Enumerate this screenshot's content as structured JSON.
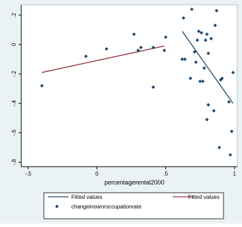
{
  "chart_data": {
    "type": "scatter",
    "title": "",
    "xlabel": "percentagerental2000",
    "ylabel": "",
    "xlim": [
      -0.55,
      1.02
    ],
    "ylim": [
      -0.83,
      0.27
    ],
    "x_ticks": [
      -0.5,
      0,
      0.5,
      1
    ],
    "x_tick_labels": [
      "-.5",
      "0",
      ".5",
      "1"
    ],
    "y_ticks": [
      -0.8,
      -0.6,
      -0.4,
      -0.2,
      0,
      0.2
    ],
    "y_tick_labels": [
      "-.8",
      "-.6",
      "-.4",
      "-.2",
      "0",
      ".2"
    ],
    "grid": false,
    "legend_position": "bottom",
    "colors": {
      "outer_background": "#eaf2f3",
      "plot_background": "#ffffff",
      "points": "#1a476f",
      "left_fit": "#90353b",
      "right_fit": "#1a476f"
    },
    "series": [
      {
        "name": "changeinownroccupationrate",
        "type": "scatter",
        "marker": "diamond",
        "color": "#1a476f",
        "points": [
          [
            -0.4,
            -0.28
          ],
          [
            -0.08,
            -0.08
          ],
          [
            0.07,
            -0.03
          ],
          [
            0.27,
            0.07
          ],
          [
            0.3,
            -0.04
          ],
          [
            0.32,
            -0.02
          ],
          [
            0.41,
            -0.02
          ],
          [
            0.41,
            -0.29
          ],
          [
            0.49,
            -0.04
          ],
          [
            0.5,
            0.05
          ],
          [
            0.62,
            -0.1
          ],
          [
            0.63,
            0.18
          ],
          [
            0.64,
            -0.1
          ],
          [
            0.68,
            -0.23
          ],
          [
            0.69,
            0.24
          ],
          [
            0.71,
            -0.05
          ],
          [
            0.72,
            -0.12
          ],
          [
            0.73,
            0.03
          ],
          [
            0.74,
            0.09
          ],
          [
            0.75,
            -0.25
          ],
          [
            0.76,
            0.08
          ],
          [
            0.77,
            -0.25
          ],
          [
            0.78,
            -0.16
          ],
          [
            0.79,
            0.03
          ],
          [
            0.8,
            0.07
          ],
          [
            0.8,
            -0.51
          ],
          [
            0.81,
            -0.06
          ],
          [
            0.81,
            -0.41
          ],
          [
            0.83,
            0.04
          ],
          [
            0.85,
            -0.45
          ],
          [
            0.86,
            0.13
          ],
          [
            0.87,
            0.23
          ],
          [
            0.89,
            -0.7
          ],
          [
            0.9,
            -0.24
          ],
          [
            0.91,
            -0.23
          ],
          [
            0.96,
            -0.39
          ],
          [
            0.97,
            -0.75
          ],
          [
            0.98,
            -0.59
          ],
          [
            0.99,
            -0.19
          ]
        ]
      },
      {
        "name": "Fitted values",
        "type": "line",
        "color": "#90353b",
        "points": [
          [
            -0.4,
            -0.19
          ],
          [
            0.49,
            -0.01
          ]
        ]
      },
      {
        "name": "Fitted values",
        "type": "line",
        "color": "#1a476f",
        "points": [
          [
            0.62,
            0.09
          ],
          [
            0.99,
            -0.4
          ]
        ]
      }
    ],
    "legend": [
      {
        "label": "Fitted values",
        "kind": "line",
        "color": "#1a476f"
      },
      {
        "label": "Fitted values",
        "kind": "line",
        "color": "#90353b"
      },
      {
        "label": "changeinownroccupationrate",
        "kind": "diamond",
        "color": "#1a476f"
      }
    ]
  }
}
